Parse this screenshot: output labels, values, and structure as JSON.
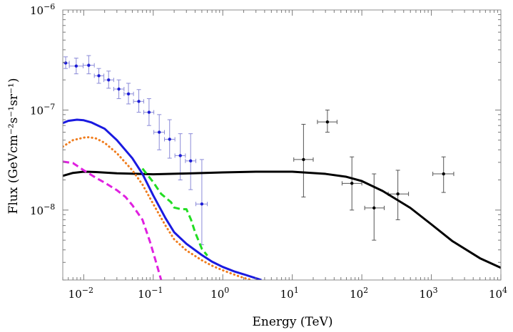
{
  "chart_data": {
    "type": "scatter",
    "xscale": "log",
    "yscale": "log",
    "xlim": [
      0.005,
      10000
    ],
    "ylim": [
      2e-09,
      1e-06
    ],
    "xlabel": "Energy (TeV)",
    "ylabel": "Flux (GeVcm⁻²s⁻¹sr⁻¹)",
    "xticks": [
      {
        "value": 0.01,
        "base": "10",
        "exp": "−2"
      },
      {
        "value": 0.1,
        "base": "10",
        "exp": "−1"
      },
      {
        "value": 1,
        "base": "10",
        "exp": "0"
      },
      {
        "value": 10,
        "base": "10",
        "exp": "1"
      },
      {
        "value": 100,
        "base": "10",
        "exp": "2"
      },
      {
        "value": 1000,
        "base": "10",
        "exp": "3"
      },
      {
        "value": 10000,
        "base": "10",
        "exp": "4"
      }
    ],
    "yticks": [
      {
        "value": 1e-08,
        "base": "10",
        "exp": "−8"
      },
      {
        "value": 1e-07,
        "base": "10",
        "exp": "−7"
      },
      {
        "value": 1e-06,
        "base": "10",
        "exp": "−6"
      }
    ],
    "grid": false,
    "series": [
      {
        "kind": "points",
        "color": "#1c1cd6",
        "points": [
          {
            "x": 0.0055,
            "y": 2.95e-07,
            "xerr": [
              0.005,
              0.0062
            ],
            "yerr": [
              2.6e-07,
              3.4e-07
            ]
          },
          {
            "x": 0.0078,
            "y": 2.75e-07,
            "xerr": [
              0.0062,
              0.0098
            ],
            "yerr": [
              2.3e-07,
              3.3e-07
            ]
          },
          {
            "x": 0.0118,
            "y": 2.8e-07,
            "xerr": [
              0.0098,
              0.0142
            ],
            "yerr": [
              2.3e-07,
              3.5e-07
            ]
          },
          {
            "x": 0.0165,
            "y": 2.2e-07,
            "xerr": [
              0.0142,
              0.0195
            ],
            "yerr": [
              1.85e-07,
              2.6e-07
            ]
          },
          {
            "x": 0.0228,
            "y": 2e-07,
            "xerr": [
              0.0195,
              0.027
            ],
            "yerr": [
              1.65e-07,
              2.45e-07
            ]
          },
          {
            "x": 0.032,
            "y": 1.62e-07,
            "xerr": [
              0.027,
              0.038
            ],
            "yerr": [
              1.3e-07,
              2e-07
            ]
          },
          {
            "x": 0.044,
            "y": 1.45e-07,
            "xerr": [
              0.038,
              0.052
            ],
            "yerr": [
              1.15e-07,
              1.85e-07
            ]
          },
          {
            "x": 0.062,
            "y": 1.22e-07,
            "xerr": [
              0.052,
              0.073
            ],
            "yerr": [
              9.5e-08,
              1.6e-07
            ]
          },
          {
            "x": 0.087,
            "y": 9.5e-08,
            "xerr": [
              0.073,
              0.102
            ],
            "yerr": [
              7e-08,
              1.3e-07
            ]
          },
          {
            "x": 0.122,
            "y": 6e-08,
            "xerr": [
              0.102,
              0.145
            ],
            "yerr": [
              4e-08,
              9e-08
            ]
          },
          {
            "x": 0.172,
            "y": 5.1e-08,
            "xerr": [
              0.145,
              0.205
            ],
            "yerr": [
              3.3e-08,
              8e-08
            ]
          },
          {
            "x": 0.245,
            "y": 3.5e-08,
            "xerr": [
              0.205,
              0.29
            ],
            "yerr": [
              2e-08,
              5.8e-08
            ]
          },
          {
            "x": 0.345,
            "y": 3.1e-08,
            "xerr": [
              0.29,
              0.41
            ],
            "yerr": [
              1.6e-08,
              5.8e-08
            ]
          },
          {
            "x": 0.5,
            "y": 1.15e-08,
            "xerr": [
              0.41,
              0.6
            ],
            "yerr": [
              4.5e-09,
              3.2e-08
            ]
          }
        ]
      },
      {
        "kind": "points",
        "color": "#000000",
        "points": [
          {
            "x": 14.5,
            "y": 3.2e-08,
            "xerr": [
              10.5,
              20
            ],
            "yerr": [
              1.35e-08,
              7.2e-08
            ]
          },
          {
            "x": 32,
            "y": 7.6e-08,
            "xerr": [
              23,
              44
            ],
            "yerr": [
              6e-08,
              1e-07
            ]
          },
          {
            "x": 72,
            "y": 1.85e-08,
            "xerr": [
              52,
              100
            ],
            "yerr": [
              1e-08,
              3.4e-08
            ]
          },
          {
            "x": 150,
            "y": 1.05e-08,
            "xerr": [
              110,
              210
            ],
            "yerr": [
              5e-09,
              2.3e-08
            ]
          },
          {
            "x": 330,
            "y": 1.45e-08,
            "xerr": [
              240,
              470
            ],
            "yerr": [
              8e-09,
              2.5e-08
            ]
          },
          {
            "x": 1500,
            "y": 2.3e-08,
            "xerr": [
              1050,
              2100
            ],
            "yerr": [
              1.5e-08,
              3.4e-08
            ]
          }
        ]
      },
      {
        "kind": "line",
        "color": "#000000",
        "dash": "solid",
        "width": 3,
        "x": [
          0.005,
          0.007,
          0.01,
          0.015,
          0.03,
          0.06,
          0.1,
          0.3,
          1,
          3,
          10,
          30,
          60,
          100,
          200,
          500,
          1000,
          2000,
          5000,
          10000
        ],
        "y": [
          2.2e-08,
          2.35e-08,
          2.42e-08,
          2.4e-08,
          2.33e-08,
          2.3e-08,
          2.28e-08,
          2.32e-08,
          2.38e-08,
          2.42e-08,
          2.42e-08,
          2.3e-08,
          2.15e-08,
          1.95e-08,
          1.55e-08,
          1.05e-08,
          7.2e-09,
          4.9e-09,
          3.3e-09,
          2.65e-09
        ]
      },
      {
        "kind": "line",
        "color": "#1a1ae0",
        "dash": "solid",
        "width": 3,
        "x": [
          0.005,
          0.006,
          0.008,
          0.01,
          0.013,
          0.02,
          0.03,
          0.05,
          0.07,
          0.1,
          0.15,
          0.2,
          0.3,
          0.5,
          0.7,
          1,
          1.5,
          2,
          3,
          3.6
        ],
        "y": [
          7.4e-08,
          7.8e-08,
          8e-08,
          7.9e-08,
          7.5e-08,
          6.5e-08,
          5e-08,
          3.3e-08,
          2.3e-08,
          1.4e-08,
          8.3e-09,
          6e-09,
          4.6e-09,
          3.55e-09,
          3.05e-09,
          2.7e-09,
          2.42e-09,
          2.28e-09,
          2.08e-09,
          2e-09
        ]
      },
      {
        "kind": "line",
        "color": "#f07d1e",
        "dash": "dotted",
        "width": 3,
        "x": [
          0.005,
          0.007,
          0.01,
          0.012,
          0.015,
          0.02,
          0.03,
          0.05,
          0.07,
          0.1,
          0.15,
          0.2,
          0.3,
          0.5,
          0.7,
          1,
          1.5,
          2,
          2.6
        ],
        "y": [
          4.3e-08,
          5e-08,
          5.3e-08,
          5.35e-08,
          5.2e-08,
          4.7e-08,
          3.7e-08,
          2.5e-08,
          1.8e-08,
          1.15e-08,
          7e-09,
          5.1e-09,
          3.95e-09,
          3.15e-09,
          2.78e-09,
          2.5e-09,
          2.25e-09,
          2.1e-09,
          2e-09
        ]
      },
      {
        "kind": "line",
        "color": "#22dd22",
        "dash": "dashed",
        "width": 3,
        "x": [
          0.07,
          0.1,
          0.13,
          0.18,
          0.2,
          0.25,
          0.3,
          0.35,
          0.4,
          0.5,
          0.6
        ],
        "y": [
          2.6e-08,
          1.9e-08,
          1.45e-08,
          1.2e-08,
          1.06e-08,
          1.02e-08,
          1.02e-08,
          8e-09,
          6e-09,
          4.1e-09,
          3.5e-09
        ]
      },
      {
        "kind": "line",
        "color": "#e020e0",
        "dash": "dashed",
        "width": 3,
        "x": [
          0.005,
          0.007,
          0.01,
          0.015,
          0.02,
          0.03,
          0.04,
          0.05,
          0.07,
          0.09,
          0.11,
          0.13
        ],
        "y": [
          3.05e-08,
          2.95e-08,
          2.5e-08,
          2.1e-08,
          1.88e-08,
          1.58e-08,
          1.35e-08,
          1.12e-08,
          8e-09,
          4.8e-09,
          3e-09,
          2e-09
        ]
      }
    ]
  }
}
